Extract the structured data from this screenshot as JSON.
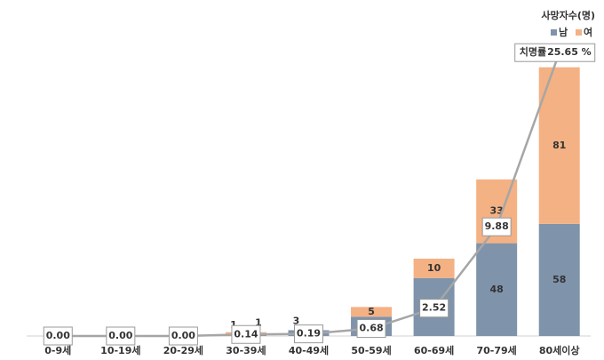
{
  "chart_data": {
    "type": "bar",
    "stacked": true,
    "categories": [
      "0-9세",
      "10-19세",
      "20-29세",
      "30-39세",
      "40-49세",
      "50-59세",
      "60-69세",
      "70-79세",
      "80세이상"
    ],
    "ylim": [
      0,
      160
    ],
    "y2lim": [
      0,
      28
    ],
    "legend_title": "사망자수(명)",
    "legend": "upper right",
    "series": [
      {
        "name": "남",
        "color": "#7f93ab",
        "values": [
          0,
          0,
          0,
          1,
          3,
          10,
          30,
          48,
          58
        ]
      },
      {
        "name": "여",
        "color": "#f4b183",
        "values": [
          0,
          0,
          0,
          1,
          0,
          5,
          10,
          33,
          81
        ]
      },
      {
        "name": "치명률",
        "type": "line",
        "axis": "y2",
        "color": "#a6a6a6",
        "values": [
          0,
          0,
          0,
          0.14,
          0.19,
          0.68,
          2.52,
          9.88,
          25.65
        ],
        "value_labels": [
          "0.00",
          "0.00",
          "0.00",
          "0.14",
          "0.19",
          "0.68",
          "2.52",
          "9.88",
          "25.65 %"
        ]
      }
    ]
  }
}
